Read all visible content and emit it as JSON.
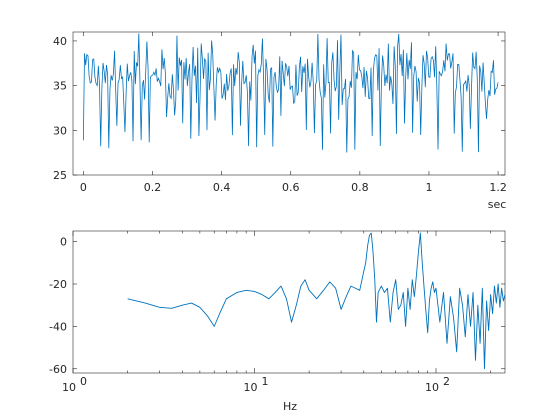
{
  "chart_data": [
    {
      "type": "line",
      "xlabel": "sec",
      "ylabel": "",
      "xlim": [
        -0.03,
        1.22
      ],
      "ylim": [
        25,
        41
      ],
      "xticks": [
        0,
        0.2,
        0.4,
        0.6,
        0.8,
        1,
        1.2
      ],
      "xtick_labels": [
        "0",
        "0.2",
        "0.4",
        "0.6",
        "0.8",
        "1",
        "1.2"
      ],
      "yticks": [
        25,
        30,
        35,
        40
      ],
      "ytick_labels": [
        "25",
        "30",
        "35",
        "40"
      ],
      "grid": false,
      "series": [
        {
          "x_start": 0,
          "x_end": 1.2,
          "n": 360,
          "mean": 36,
          "spread": 2.4,
          "dip_period_sec": 0.0238,
          "dip_min": 27.5,
          "peak_max": 41,
          "color": "#0072BD"
        }
      ]
    },
    {
      "type": "line",
      "xlabel": "Hz",
      "ylabel": "",
      "xscale": "log",
      "xlim": [
        1,
        240
      ],
      "ylim": [
        -62,
        5
      ],
      "xticks": [
        1,
        10,
        100
      ],
      "xtick_labels": [
        "10",
        "10",
        "10"
      ],
      "xtick_exponents": [
        "0",
        "1",
        "2"
      ],
      "yticks": [
        -60,
        -40,
        -20,
        0
      ],
      "ytick_labels": [
        "-60",
        "-40",
        "-20",
        "0"
      ],
      "grid": false,
      "series": [
        {
          "color": "#0072BD",
          "x": [
            2,
            2.5,
            3,
            3.5,
            4,
            4.5,
            5,
            5.5,
            6,
            6.5,
            7,
            8,
            9,
            10,
            11,
            12,
            13,
            14,
            15,
            16,
            17,
            18,
            19,
            20,
            21,
            22,
            24,
            26,
            28,
            30,
            32,
            34,
            36,
            38,
            40,
            41,
            42,
            43,
            44,
            45,
            46,
            47,
            48,
            50,
            52,
            54,
            56,
            58,
            60,
            62,
            64,
            66,
            68,
            70,
            72,
            74,
            76,
            78,
            80,
            82,
            84,
            86,
            88,
            90,
            92,
            94,
            96,
            98,
            100,
            105,
            110,
            115,
            120,
            125,
            130,
            135,
            140,
            145,
            150,
            155,
            160,
            165,
            170,
            175,
            180,
            185,
            190,
            195,
            200,
            205,
            210,
            215,
            220,
            225,
            230,
            235,
            240
          ],
          "y": [
            -27,
            -29,
            -31,
            -31.5,
            -30,
            -29,
            -31,
            -35,
            -40,
            -33,
            -27,
            -24,
            -23,
            -23.5,
            -25,
            -27,
            -24,
            -21,
            -27,
            -38,
            -30,
            -21,
            -18,
            -23,
            -25,
            -27,
            -23,
            -19,
            -22,
            -32,
            -26,
            -21,
            -22,
            -23,
            -14,
            -10,
            -2,
            3,
            4,
            -5,
            -18,
            -38,
            -24,
            -21,
            -24,
            -22,
            -38,
            -24,
            -18,
            -32,
            -30,
            -24,
            -40,
            -22,
            -32,
            -18,
            -26,
            -16,
            -5,
            4,
            -10,
            -22,
            -33,
            -43,
            -28,
            -22,
            -19,
            -24,
            -22,
            -38,
            -24,
            -48,
            -26,
            -36,
            -52,
            -22,
            -30,
            -45,
            -25,
            -40,
            -24,
            -56,
            -30,
            -48,
            -22,
            -60,
            -28,
            -42,
            -25,
            -34,
            -21,
            -29,
            -20,
            -31,
            -22,
            -28,
            -25
          ]
        }
      ]
    }
  ]
}
